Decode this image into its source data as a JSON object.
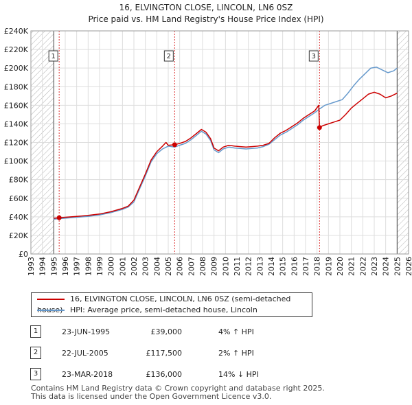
{
  "chart_data": {
    "type": "line",
    "title": "16, ELVINGTON CLOSE, LINCOLN, LN6 0SZ",
    "subtitle": "Price paid vs. HM Land Registry's House Price Index (HPI)",
    "xlim": [
      1993,
      2026
    ],
    "ylim": [
      0,
      240000
    ],
    "x_ticks": [
      "1993",
      "1994",
      "1995",
      "1996",
      "1997",
      "1998",
      "1999",
      "2000",
      "2001",
      "2002",
      "2003",
      "2004",
      "2005",
      "2006",
      "2007",
      "2008",
      "2009",
      "2010",
      "2011",
      "2012",
      "2013",
      "2014",
      "2015",
      "2016",
      "2017",
      "2018",
      "2019",
      "2020",
      "2021",
      "2022",
      "2023",
      "2024",
      "2025",
      "2026"
    ],
    "y_ticks": [
      {
        "value": 0,
        "label": "£0"
      },
      {
        "value": 20000,
        "label": "£20K"
      },
      {
        "value": 40000,
        "label": "£40K"
      },
      {
        "value": 60000,
        "label": "£60K"
      },
      {
        "value": 80000,
        "label": "£80K"
      },
      {
        "value": 100000,
        "label": "£100K"
      },
      {
        "value": 120000,
        "label": "£120K"
      },
      {
        "value": 140000,
        "label": "£140K"
      },
      {
        "value": 160000,
        "label": "£160K"
      },
      {
        "value": 180000,
        "label": "£180K"
      },
      {
        "value": 200000,
        "label": "£200K"
      },
      {
        "value": 220000,
        "label": "£220K"
      },
      {
        "value": 240000,
        "label": "£240K"
      }
    ],
    "hatched_ranges": [
      [
        1993,
        1995.0
      ],
      [
        2025.0,
        2026
      ]
    ],
    "series": [
      {
        "name": "16, ELVINGTON CLOSE, LINCOLN, LN6 0SZ (semi-detached house)",
        "color": "#cc0000",
        "points": [
          [
            1995.0,
            38500
          ],
          [
            1995.47,
            39000
          ],
          [
            1996.0,
            39500
          ],
          [
            1997.0,
            40500
          ],
          [
            1998.0,
            41500
          ],
          [
            1999.0,
            43000
          ],
          [
            2000.0,
            45500
          ],
          [
            2001.0,
            49000
          ],
          [
            2001.5,
            51500
          ],
          [
            2002.0,
            58000
          ],
          [
            2002.5,
            72000
          ],
          [
            2003.0,
            86000
          ],
          [
            2003.5,
            101000
          ],
          [
            2004.0,
            110000
          ],
          [
            2004.5,
            116000
          ],
          [
            2004.8,
            120000
          ],
          [
            2005.0,
            117000
          ],
          [
            2005.56,
            117500
          ],
          [
            2006.0,
            119000
          ],
          [
            2006.5,
            121000
          ],
          [
            2007.0,
            125000
          ],
          [
            2007.5,
            130000
          ],
          [
            2007.9,
            134000
          ],
          [
            2008.3,
            131000
          ],
          [
            2008.7,
            124000
          ],
          [
            2009.0,
            114000
          ],
          [
            2009.4,
            111000
          ],
          [
            2009.8,
            115000
          ],
          [
            2010.3,
            117000
          ],
          [
            2010.8,
            116000
          ],
          [
            2011.3,
            115500
          ],
          [
            2011.8,
            115000
          ],
          [
            2012.3,
            115500
          ],
          [
            2012.8,
            116000
          ],
          [
            2013.3,
            117000
          ],
          [
            2013.8,
            119000
          ],
          [
            2014.3,
            125000
          ],
          [
            2014.8,
            130000
          ],
          [
            2015.3,
            133000
          ],
          [
            2015.8,
            137000
          ],
          [
            2016.3,
            141000
          ],
          [
            2016.8,
            146000
          ],
          [
            2017.3,
            150000
          ],
          [
            2017.8,
            154000
          ],
          [
            2018.15,
            160000
          ],
          [
            2018.22,
            136000
          ],
          [
            2018.5,
            138000
          ],
          [
            2019.0,
            140000
          ],
          [
            2019.5,
            142000
          ],
          [
            2020.0,
            144000
          ],
          [
            2020.5,
            150000
          ],
          [
            2021.0,
            157000
          ],
          [
            2021.5,
            162000
          ],
          [
            2022.0,
            167000
          ],
          [
            2022.5,
            172000
          ],
          [
            2023.0,
            174000
          ],
          [
            2023.5,
            172000
          ],
          [
            2024.0,
            168000
          ],
          [
            2024.5,
            170000
          ],
          [
            2025.0,
            173000
          ]
        ]
      },
      {
        "name": "HPI: Average price, semi-detached house, Lincoln",
        "color": "#6699cc",
        "points": [
          [
            1995.0,
            37500
          ],
          [
            1996.0,
            38500
          ],
          [
            1997.0,
            39500
          ],
          [
            1998.0,
            40500
          ],
          [
            1999.0,
            42000
          ],
          [
            2000.0,
            44500
          ],
          [
            2001.0,
            48000
          ],
          [
            2001.5,
            50500
          ],
          [
            2002.0,
            56000
          ],
          [
            2002.5,
            70000
          ],
          [
            2003.0,
            84000
          ],
          [
            2003.5,
            99000
          ],
          [
            2004.0,
            108000
          ],
          [
            2004.5,
            113000
          ],
          [
            2005.0,
            116000
          ],
          [
            2005.56,
            115000
          ],
          [
            2006.0,
            117000
          ],
          [
            2006.5,
            119000
          ],
          [
            2007.0,
            123000
          ],
          [
            2007.5,
            128000
          ],
          [
            2007.9,
            132000
          ],
          [
            2008.3,
            129000
          ],
          [
            2008.7,
            122000
          ],
          [
            2009.0,
            112000
          ],
          [
            2009.4,
            109000
          ],
          [
            2009.8,
            113000
          ],
          [
            2010.3,
            115000
          ],
          [
            2010.8,
            114000
          ],
          [
            2011.3,
            113500
          ],
          [
            2011.8,
            113000
          ],
          [
            2012.3,
            113500
          ],
          [
            2012.8,
            114000
          ],
          [
            2013.3,
            115500
          ],
          [
            2013.8,
            118000
          ],
          [
            2014.3,
            123000
          ],
          [
            2014.8,
            128000
          ],
          [
            2015.3,
            131000
          ],
          [
            2015.8,
            135000
          ],
          [
            2016.3,
            139000
          ],
          [
            2016.8,
            144000
          ],
          [
            2017.3,
            148000
          ],
          [
            2017.8,
            152000
          ],
          [
            2018.22,
            156000
          ],
          [
            2018.7,
            160000
          ],
          [
            2019.2,
            162000
          ],
          [
            2019.7,
            164000
          ],
          [
            2020.2,
            166000
          ],
          [
            2020.7,
            173000
          ],
          [
            2021.2,
            181000
          ],
          [
            2021.7,
            188000
          ],
          [
            2022.2,
            194000
          ],
          [
            2022.7,
            200000
          ],
          [
            2023.2,
            201000
          ],
          [
            2023.7,
            198000
          ],
          [
            2024.2,
            195000
          ],
          [
            2024.7,
            197000
          ],
          [
            2025.0,
            200000
          ]
        ]
      }
    ],
    "sales_markers": [
      {
        "label": "1",
        "x": 1995.47,
        "y": 39000
      },
      {
        "label": "2",
        "x": 2005.56,
        "y": 117500
      },
      {
        "label": "3",
        "x": 2018.22,
        "y": 136000
      }
    ]
  },
  "legend": {
    "items": [
      {
        "label": "16, ELVINGTON CLOSE, LINCOLN, LN6 0SZ (semi-detached house)",
        "color": "#cc0000"
      },
      {
        "label": "HPI: Average price, semi-detached house, Lincoln",
        "color": "#6699cc"
      }
    ]
  },
  "sales": [
    {
      "num": "1",
      "date": "23-JUN-1995",
      "price": "£39,000",
      "hpi": "4% ↑ HPI"
    },
    {
      "num": "2",
      "date": "22-JUL-2005",
      "price": "£117,500",
      "hpi": "2% ↑ HPI"
    },
    {
      "num": "3",
      "date": "23-MAR-2018",
      "price": "£136,000",
      "hpi": "14% ↓ HPI"
    }
  ],
  "footer": {
    "line1": "Contains HM Land Registry data © Crown copyright and database right 2025.",
    "line2": "This data is licensed under the Open Government Licence v3.0."
  }
}
